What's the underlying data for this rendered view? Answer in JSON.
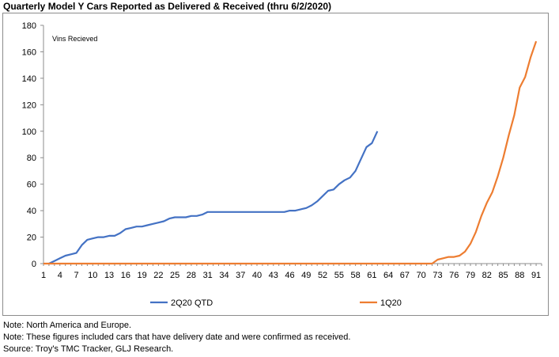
{
  "title": "Quarterly Model Y Cars Reported as Delivered & Received (thru 6/2/2020)",
  "notes": [
    "Note: North America and Europe.",
    "Note: These figures included cars that have delivery date and were confirmed as received.",
    "Source: Troy's TMC Tracker, GLJ Research."
  ],
  "chart_data": {
    "type": "line",
    "title": "Quarterly Model Y Cars Reported as Delivered & Received (thru 6/2/2020)",
    "annotation": "Vins Recieved",
    "xlabel": "",
    "ylabel": "",
    "xlim": [
      1,
      92
    ],
    "ylim": [
      0,
      180
    ],
    "yticks": [
      0,
      20,
      40,
      60,
      80,
      100,
      120,
      140,
      160,
      180
    ],
    "xticks": [
      1,
      4,
      7,
      10,
      13,
      16,
      19,
      22,
      25,
      28,
      31,
      34,
      37,
      40,
      43,
      46,
      49,
      52,
      55,
      58,
      61,
      64,
      67,
      70,
      73,
      76,
      79,
      82,
      85,
      88,
      91
    ],
    "grid": false,
    "legend_position": "bottom",
    "series": [
      {
        "name": "2Q20 QTD",
        "color": "#4472C4",
        "x": [
          2,
          3,
          4,
          5,
          6,
          7,
          8,
          9,
          10,
          11,
          12,
          13,
          14,
          15,
          16,
          17,
          18,
          19,
          20,
          21,
          22,
          23,
          24,
          25,
          26,
          27,
          28,
          29,
          30,
          31,
          32,
          33,
          34,
          35,
          36,
          37,
          38,
          39,
          40,
          41,
          42,
          43,
          44,
          45,
          46,
          47,
          48,
          49,
          50,
          51,
          52,
          53,
          54,
          55,
          56,
          57,
          58,
          59,
          60,
          61,
          62
        ],
        "y": [
          0,
          2,
          4,
          6,
          7,
          8,
          14,
          18,
          19,
          20,
          20,
          21,
          21,
          23,
          26,
          27,
          28,
          28,
          29,
          30,
          31,
          32,
          34,
          35,
          35,
          35,
          36,
          36,
          37,
          39,
          39,
          39,
          39,
          39,
          39,
          39,
          39,
          39,
          39,
          39,
          39,
          39,
          39,
          39,
          40,
          40,
          41,
          42,
          44,
          47,
          51,
          55,
          56,
          60,
          63,
          65,
          70,
          79,
          88,
          91,
          100
        ]
      },
      {
        "name": "1Q20",
        "color": "#ED7D31",
        "x": [
          1,
          2,
          3,
          4,
          5,
          6,
          7,
          8,
          9,
          10,
          11,
          12,
          13,
          14,
          15,
          16,
          17,
          18,
          19,
          20,
          21,
          22,
          23,
          24,
          25,
          26,
          27,
          28,
          29,
          30,
          31,
          32,
          33,
          34,
          35,
          36,
          37,
          38,
          39,
          40,
          41,
          42,
          43,
          44,
          45,
          46,
          47,
          48,
          49,
          50,
          51,
          52,
          53,
          54,
          55,
          56,
          57,
          58,
          59,
          60,
          61,
          62,
          63,
          64,
          65,
          66,
          67,
          68,
          69,
          70,
          71,
          72,
          73,
          74,
          75,
          76,
          77,
          78,
          79,
          80,
          81,
          82,
          83,
          84,
          85,
          86,
          87,
          88,
          89,
          90,
          91
        ],
        "y": [
          0,
          0,
          0,
          0,
          0,
          0,
          0,
          0,
          0,
          0,
          0,
          0,
          0,
          0,
          0,
          0,
          0,
          0,
          0,
          0,
          0,
          0,
          0,
          0,
          0,
          0,
          0,
          0,
          0,
          0,
          0,
          0,
          0,
          0,
          0,
          0,
          0,
          0,
          0,
          0,
          0,
          0,
          0,
          0,
          0,
          0,
          0,
          0,
          0,
          0,
          0,
          0,
          0,
          0,
          0,
          0,
          0,
          0,
          0,
          0,
          0,
          0,
          0,
          0,
          0,
          0,
          0,
          0,
          0,
          0,
          0,
          0,
          3,
          4,
          5,
          5,
          6,
          9,
          15,
          24,
          36,
          46,
          54,
          66,
          80,
          97,
          112,
          133,
          141,
          156,
          168
        ]
      }
    ]
  }
}
